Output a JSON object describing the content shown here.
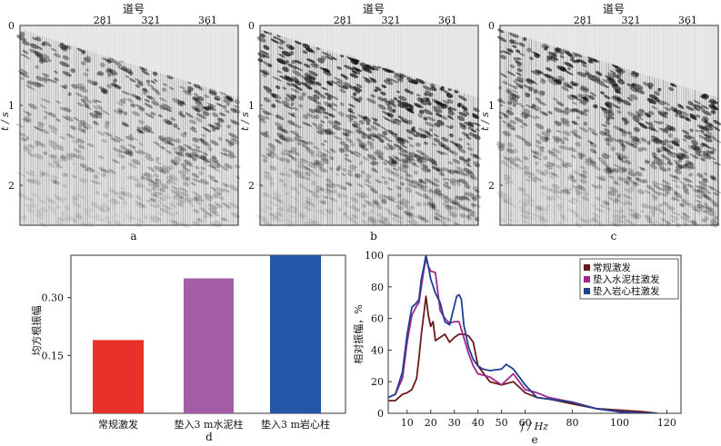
{
  "chart_data": [
    {
      "type": "image",
      "panel_label": "a",
      "title": "道号",
      "trace_ticks": [
        "281",
        "321",
        "361"
      ],
      "ylabel": "t / s",
      "y_ticks": [
        "0",
        "1",
        "2"
      ],
      "ylim": [
        0,
        2.5
      ],
      "direct_arrival_start_s": [
        0.05,
        0.1
      ],
      "direct_arrival_end_s": [
        0.9,
        1.15
      ],
      "contrast": 0.55
    },
    {
      "type": "image",
      "panel_label": "b",
      "title": "道号",
      "trace_ticks": [
        "281",
        "321",
        "361"
      ],
      "ylabel": "t / s",
      "y_ticks": [
        "0",
        "1",
        "2"
      ],
      "ylim": [
        0,
        2.5
      ],
      "direct_arrival_start_s": [
        0.05,
        0.1
      ],
      "direct_arrival_end_s": [
        0.9,
        1.15
      ],
      "contrast": 1.0
    },
    {
      "type": "image",
      "panel_label": "c",
      "title": "道号",
      "trace_ticks": [
        "281",
        "321",
        "361"
      ],
      "ylabel": "t / s",
      "y_ticks": [
        "0",
        "1",
        "2"
      ],
      "ylim": [
        0,
        2.5
      ],
      "direct_arrival_start_s": [
        0.05,
        0.1
      ],
      "direct_arrival_end_s": [
        0.9,
        1.15
      ],
      "contrast": 0.9
    },
    {
      "type": "bar",
      "panel_label": "d",
      "ylabel": "均方根振幅",
      "categories": [
        "常规激发",
        "垫入3 m水泥柱",
        "垫入3 m岩心柱"
      ],
      "values": [
        0.19,
        0.35,
        0.41
      ],
      "ylim": [
        0,
        0.41
      ],
      "y_ticks": [
        0.15,
        0.3
      ],
      "y_tick_labels": [
        "0.15",
        "0.30"
      ],
      "colors": [
        "#e8312a",
        "#a45ea8",
        "#2356a6"
      ]
    },
    {
      "type": "line",
      "panel_label": "e",
      "xlabel": "f / Hz",
      "ylabel": "相对振幅，%",
      "xlim": [
        2,
        126
      ],
      "ylim": [
        0,
        100
      ],
      "x_ticks": [
        10,
        20,
        30,
        40,
        50,
        60,
        80,
        100,
        120
      ],
      "y_ticks": [
        0,
        20,
        40,
        60,
        80,
        100
      ],
      "legend_position": "top-right",
      "series": [
        {
          "name": "常规激发",
          "color": "#6b1a1a",
          "x": [
            2,
            5,
            8,
            10,
            12,
            14,
            15,
            16,
            17,
            18,
            19,
            20,
            21,
            22,
            24,
            26,
            28,
            30,
            32,
            34,
            36,
            38,
            40,
            45,
            50,
            55,
            60,
            65,
            70,
            80,
            90,
            100,
            110,
            116
          ],
          "y": [
            8,
            8,
            12,
            13,
            15,
            22,
            35,
            50,
            62,
            74,
            62,
            55,
            58,
            46,
            48,
            50,
            45,
            48,
            50,
            50,
            49,
            45,
            30,
            20,
            18,
            20,
            13,
            10,
            9,
            6,
            3,
            2,
            1,
            0
          ]
        },
        {
          "name": "垫入水泥柱激发",
          "color": "#a0288c",
          "x": [
            2,
            5,
            8,
            10,
            12,
            14,
            15,
            16,
            17,
            18,
            19,
            20,
            22,
            24,
            26,
            28,
            30,
            32,
            34,
            36,
            38,
            40,
            45,
            50,
            55,
            60,
            65,
            70,
            80,
            90,
            100,
            110,
            116
          ],
          "y": [
            10,
            12,
            22,
            45,
            62,
            68,
            70,
            80,
            90,
            98,
            93,
            90,
            89,
            65,
            60,
            57,
            58,
            58,
            48,
            38,
            30,
            25,
            23,
            18,
            25,
            15,
            13,
            10,
            7,
            3,
            1,
            0,
            0
          ]
        },
        {
          "name": "垫入岩心柱激发",
          "color": "#1f3f93",
          "x": [
            2,
            5,
            8,
            10,
            12,
            14,
            15,
            16,
            17,
            18,
            19,
            20,
            22,
            24,
            26,
            28,
            30,
            31,
            32,
            33,
            34,
            36,
            38,
            40,
            42,
            45,
            50,
            52,
            55,
            60,
            65,
            70,
            80,
            90,
            100,
            110,
            116
          ],
          "y": [
            10,
            12,
            26,
            50,
            67,
            70,
            72,
            85,
            92,
            100,
            93,
            85,
            76,
            70,
            58,
            56,
            68,
            74,
            75,
            72,
            56,
            42,
            34,
            30,
            28,
            27,
            28,
            31,
            28,
            18,
            10,
            9,
            7,
            3,
            1,
            0,
            0
          ]
        }
      ]
    }
  ]
}
